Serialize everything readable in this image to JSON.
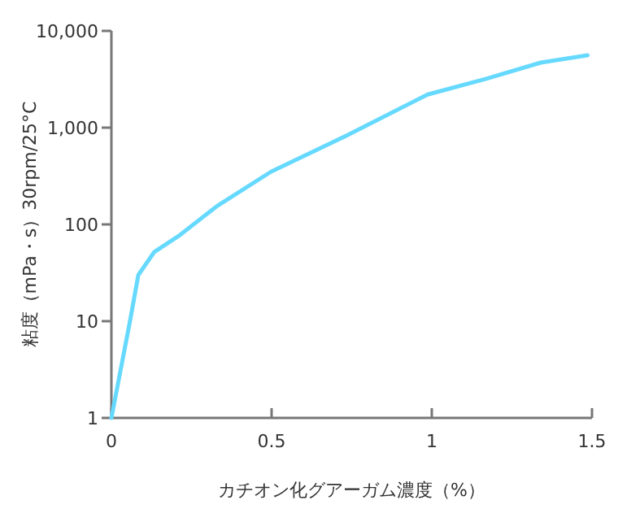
{
  "chart_data": {
    "type": "line",
    "xlabel": "カチオン化グアーガム濃度（%）",
    "ylabel": "粘度（mPa・s）30rpm/25°C",
    "log": "y",
    "xlim": [
      0,
      1.5
    ],
    "xticks": [
      0,
      0.5,
      1,
      1.5
    ],
    "ylim": [
      1,
      10000
    ],
    "yticks": [
      1,
      10,
      100,
      {
        "value": 1000,
        "label": "1,000"
      },
      {
        "value": 10000,
        "label": "10,000"
      }
    ],
    "series": [
      {
        "color": "#66d9ff",
        "x": [
          0,
          0.058,
          0.084,
          0.134,
          0.21,
          0.33,
          0.498,
          0.734,
          0.987,
          1.17,
          1.34,
          1.486
        ],
        "values": [
          1,
          10,
          30,
          52,
          76,
          155,
          350,
          830,
          2200,
          3200,
          4700,
          5600
        ]
      }
    ]
  }
}
